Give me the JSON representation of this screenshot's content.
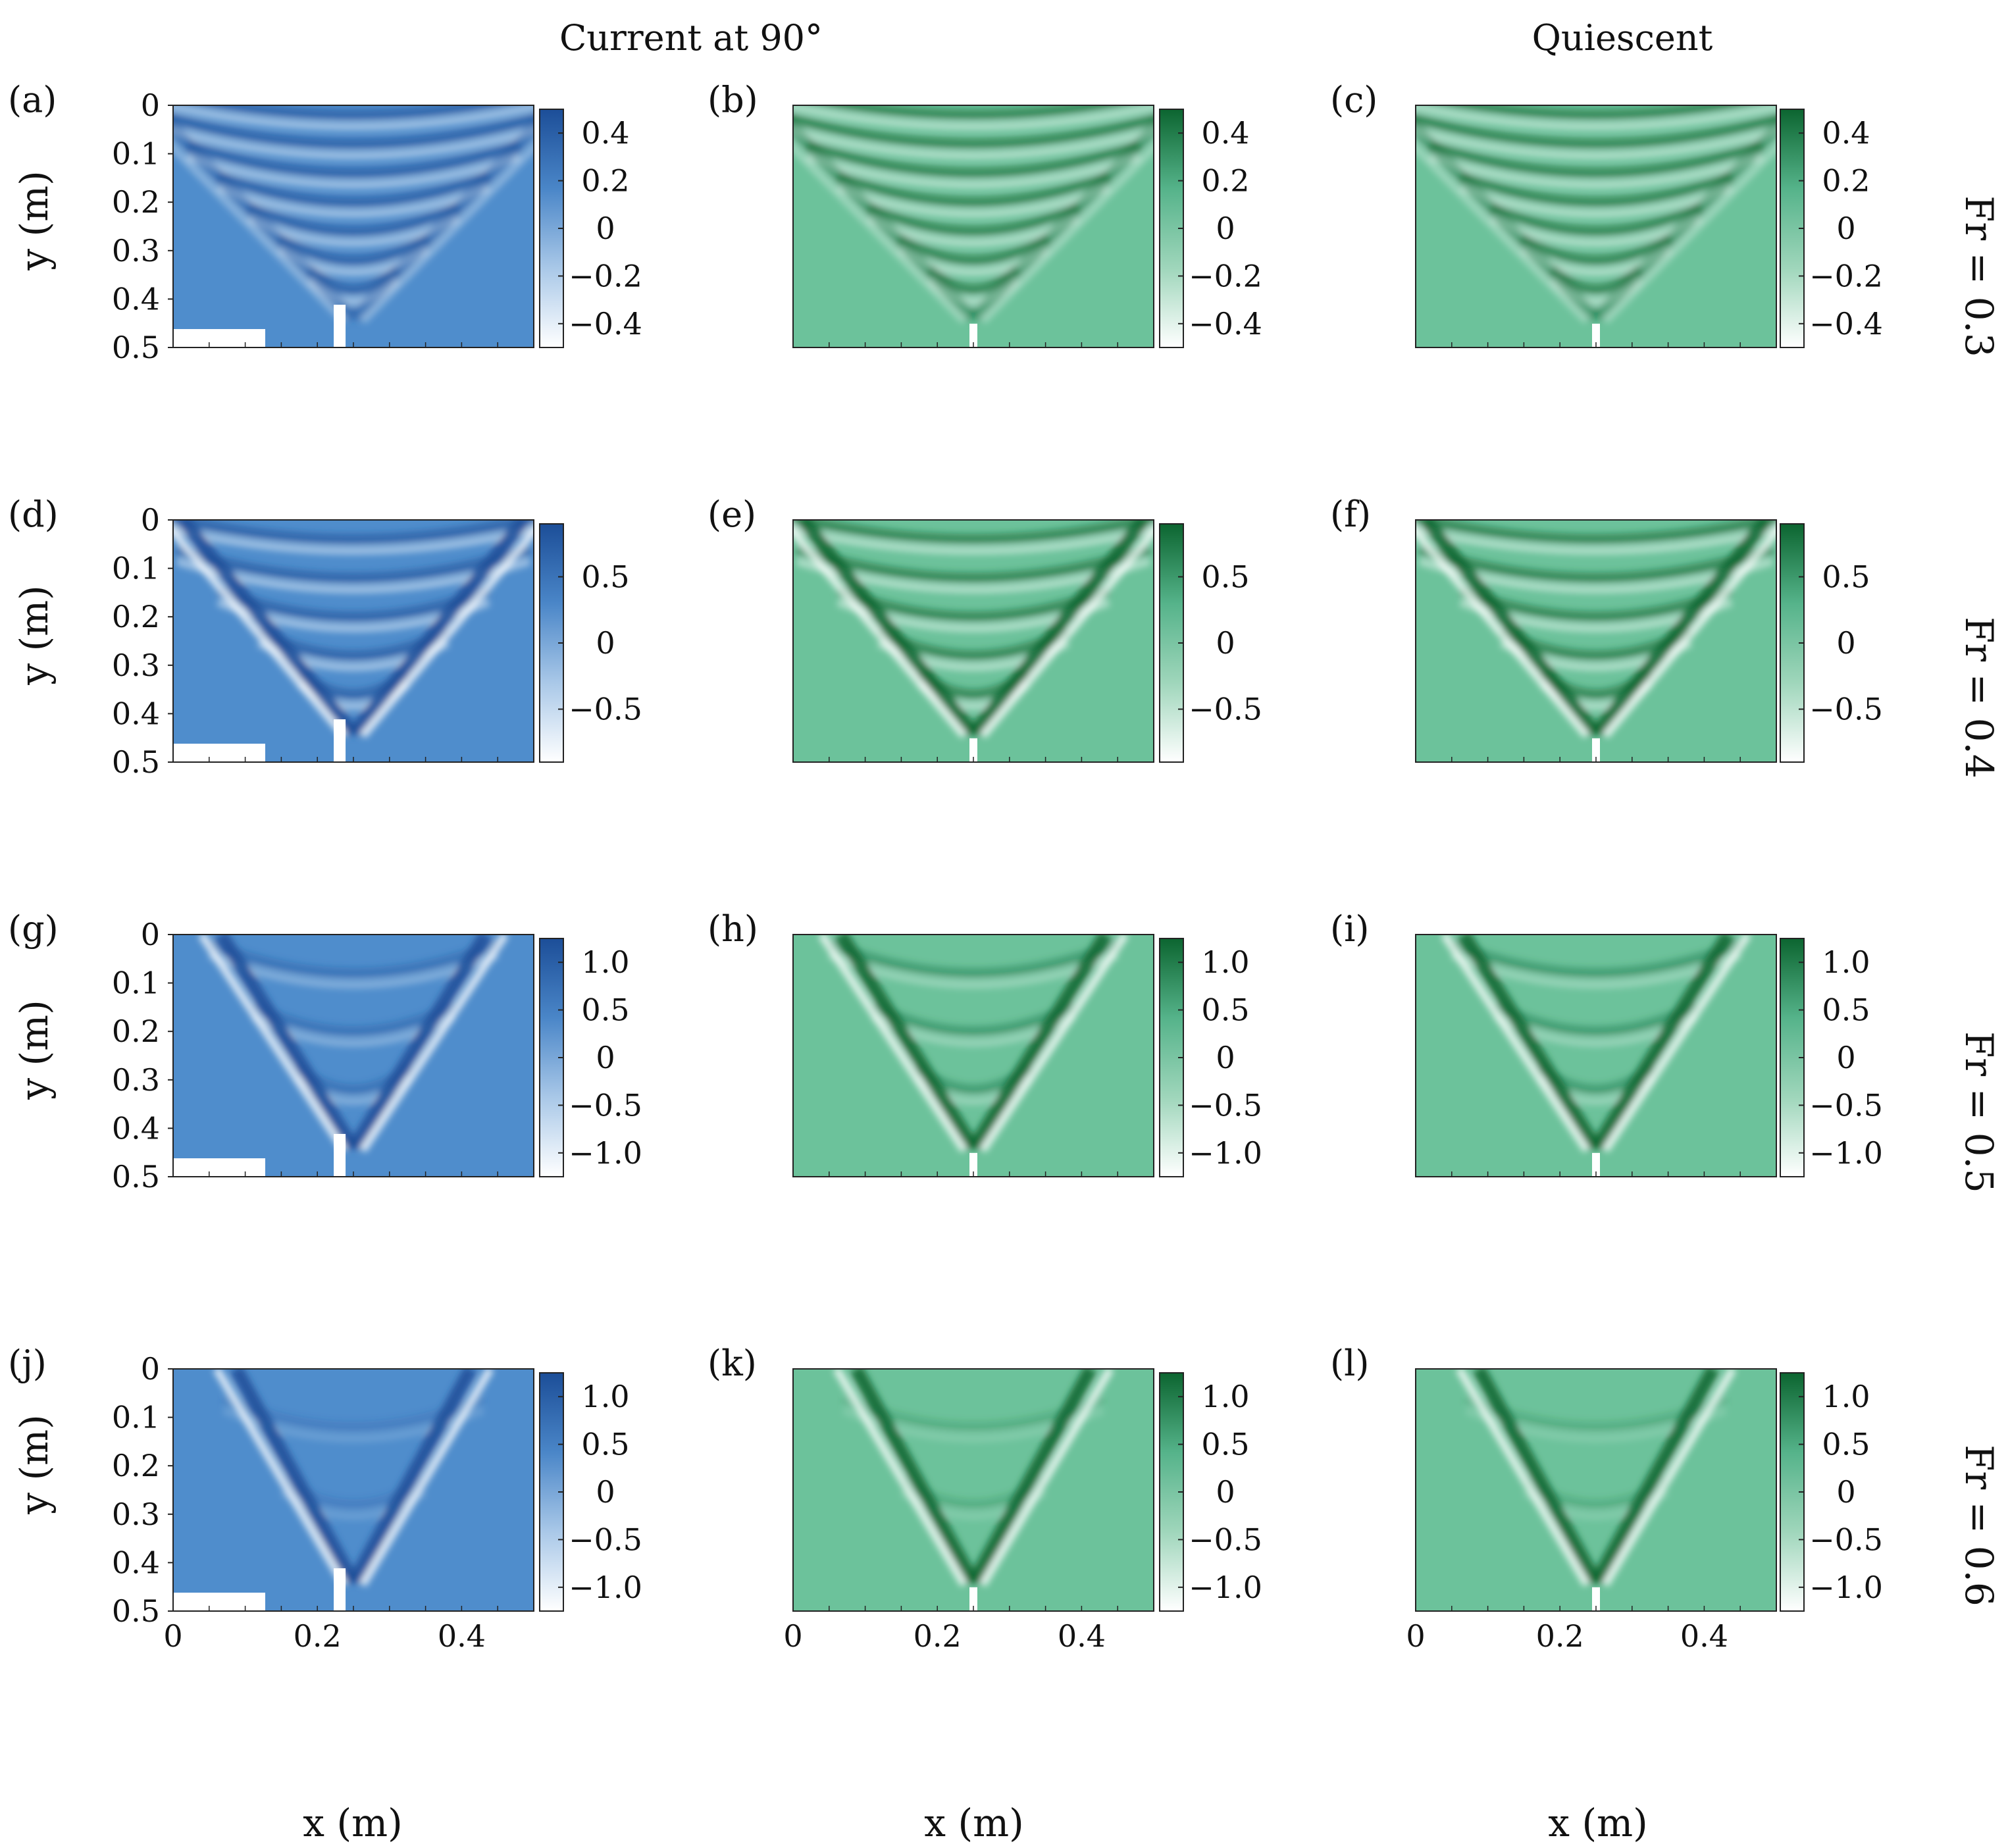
{
  "column_titles": [
    "Current at 90°",
    "Quiescent"
  ],
  "row_labels": [
    "Fr = 0.3",
    "Fr = 0.4",
    "Fr = 0.5",
    "Fr = 0.6"
  ],
  "axis_labels": {
    "x": "x (m)",
    "y": "y (m)"
  },
  "colors": {
    "blue_map": [
      "#ffffff",
      "#a9c8e8",
      "#4a86c8",
      "#1c4e98"
    ],
    "green_map": [
      "#ffffff",
      "#9fd6bb",
      "#55b38a",
      "#0c6530"
    ],
    "blue_base": "#4f8dcc",
    "green_base": "#6cc29b"
  },
  "chart_data": {
    "type": "heatmap",
    "panels": [
      {
        "label": "(a)",
        "row": 0,
        "col": 0,
        "colormap": "blue",
        "source": "measured",
        "fr": 0.3,
        "clim": [
          -0.5,
          0.5
        ],
        "cticks": [
          "0.4",
          "0.2",
          "0",
          "−0.2",
          "−0.4"
        ],
        "ctick_values": [
          0.4,
          0.2,
          0,
          -0.2,
          -0.4
        ]
      },
      {
        "label": "(b)",
        "row": 0,
        "col": 1,
        "colormap": "green",
        "source": "model",
        "fr": 0.3,
        "clim": [
          -0.5,
          0.5
        ],
        "cticks": [
          "0.4",
          "0.2",
          "0",
          "−0.2",
          "−0.4"
        ],
        "ctick_values": [
          0.4,
          0.2,
          0,
          -0.2,
          -0.4
        ]
      },
      {
        "label": "(c)",
        "row": 0,
        "col": 2,
        "colormap": "green",
        "source": "model",
        "fr": 0.3,
        "clim": [
          -0.5,
          0.5
        ],
        "cticks": [
          "0.4",
          "0.2",
          "0",
          "−0.2",
          "−0.4"
        ],
        "ctick_values": [
          0.4,
          0.2,
          0,
          -0.2,
          -0.4
        ]
      },
      {
        "label": "(d)",
        "row": 1,
        "col": 0,
        "colormap": "blue",
        "source": "measured",
        "fr": 0.4,
        "clim": [
          -0.9,
          0.9
        ],
        "cticks": [
          "0.5",
          "0",
          "−0.5"
        ],
        "ctick_values": [
          0.5,
          0,
          -0.5
        ]
      },
      {
        "label": "(e)",
        "row": 1,
        "col": 1,
        "colormap": "green",
        "source": "model",
        "fr": 0.4,
        "clim": [
          -0.9,
          0.9
        ],
        "cticks": [
          "0.5",
          "0",
          "−0.5"
        ],
        "ctick_values": [
          0.5,
          0,
          -0.5
        ]
      },
      {
        "label": "(f)",
        "row": 1,
        "col": 2,
        "colormap": "green",
        "source": "model",
        "fr": 0.4,
        "clim": [
          -0.9,
          0.9
        ],
        "cticks": [
          "0.5",
          "0",
          "−0.5"
        ],
        "ctick_values": [
          0.5,
          0,
          -0.5
        ]
      },
      {
        "label": "(g)",
        "row": 2,
        "col": 0,
        "colormap": "blue",
        "source": "measured",
        "fr": 0.5,
        "clim": [
          -1.25,
          1.25
        ],
        "cticks": [
          "1.0",
          "0.5",
          "0",
          "−0.5",
          "−1.0"
        ],
        "ctick_values": [
          1.0,
          0.5,
          0,
          -0.5,
          -1.0
        ]
      },
      {
        "label": "(h)",
        "row": 2,
        "col": 1,
        "colormap": "green",
        "source": "model",
        "fr": 0.5,
        "clim": [
          -1.25,
          1.25
        ],
        "cticks": [
          "1.0",
          "0.5",
          "0",
          "−0.5",
          "−1.0"
        ],
        "ctick_values": [
          1.0,
          0.5,
          0,
          -0.5,
          -1.0
        ]
      },
      {
        "label": "(i)",
        "row": 2,
        "col": 2,
        "colormap": "green",
        "source": "model",
        "fr": 0.5,
        "clim": [
          -1.25,
          1.25
        ],
        "cticks": [
          "1.0",
          "0.5",
          "0",
          "−0.5",
          "−1.0"
        ],
        "ctick_values": [
          1.0,
          0.5,
          0,
          -0.5,
          -1.0
        ]
      },
      {
        "label": "(j)",
        "row": 3,
        "col": 0,
        "colormap": "blue",
        "source": "measured",
        "fr": 0.6,
        "clim": [
          -1.25,
          1.25
        ],
        "cticks": [
          "1.0",
          "0.5",
          "0",
          "−0.5",
          "−1.0"
        ],
        "ctick_values": [
          1.0,
          0.5,
          0,
          -0.5,
          -1.0
        ]
      },
      {
        "label": "(k)",
        "row": 3,
        "col": 1,
        "colormap": "green",
        "source": "model",
        "fr": 0.6,
        "clim": [
          -1.25,
          1.25
        ],
        "cticks": [
          "1.0",
          "0.5",
          "0",
          "−0.5",
          "−1.0"
        ],
        "ctick_values": [
          1.0,
          0.5,
          0,
          -0.5,
          -1.0
        ]
      },
      {
        "label": "(l)",
        "row": 3,
        "col": 2,
        "colormap": "green",
        "source": "model",
        "fr": 0.6,
        "clim": [
          -1.25,
          1.25
        ],
        "cticks": [
          "1.0",
          "0.5",
          "0",
          "−0.5",
          "−1.0"
        ],
        "ctick_values": [
          1.0,
          0.5,
          0,
          -0.5,
          -1.0
        ]
      }
    ],
    "x_ticks": [
      "0",
      "0.2",
      "0.4"
    ],
    "x_tick_values": [
      0,
      0.2,
      0.4
    ],
    "y_ticks": [
      "0",
      "0.1",
      "0.2",
      "0.3",
      "0.4",
      "0.5"
    ],
    "y_tick_values": [
      0,
      0.1,
      0.2,
      0.3,
      0.4,
      0.5
    ],
    "xlim": [
      0,
      0.5
    ],
    "ylim": [
      0,
      0.5
    ],
    "y_reversed": true,
    "source_x": 0.25,
    "grid": false,
    "legend": "colorbar-right"
  }
}
